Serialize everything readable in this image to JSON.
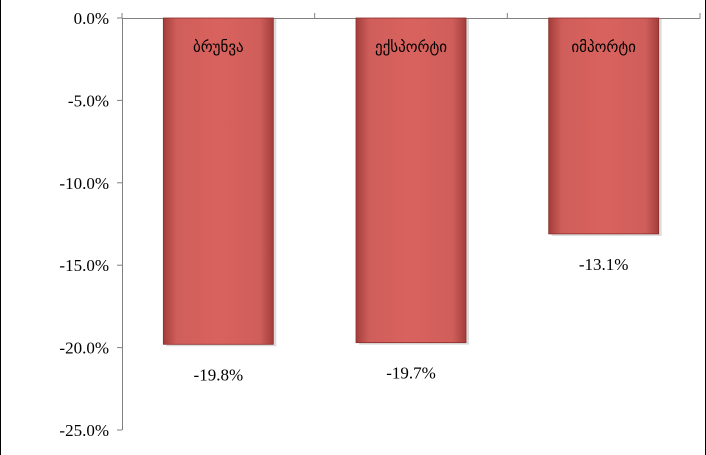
{
  "chart_data": {
    "type": "bar",
    "categories": [
      "ბრუნვა",
      "ექსპორტი",
      "იმპორტი"
    ],
    "values": [
      -19.8,
      -19.7,
      -13.1
    ],
    "data_labels": [
      "-19.8%",
      "-19.7%",
      "-13.1%"
    ],
    "ylim": [
      -25,
      0
    ],
    "yticks": [
      0,
      -5,
      -10,
      -15,
      -20,
      -25
    ],
    "ytick_labels": [
      "0.0%",
      "-5.0%",
      "-10.0%",
      "-15.0%",
      "-20.0%",
      "-25.0%"
    ],
    "grid": false,
    "legend": "none",
    "title": "",
    "xlabel": "",
    "ylabel": ""
  },
  "colors": {
    "bar_fill": "#c0504d",
    "bar_highlight": "#e07f7c",
    "bar_shadow": "#8c2d2a",
    "axis": "#808080"
  }
}
